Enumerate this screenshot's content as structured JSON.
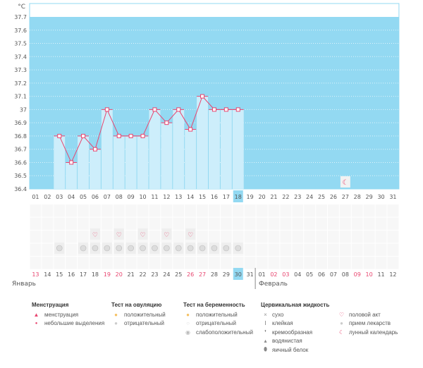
{
  "chart_data": {
    "type": "bar",
    "ylabel": "°C",
    "ylim": [
      36.4,
      37.8
    ],
    "yticks": [
      "37.7",
      "37.6",
      "37.5",
      "37.4",
      "37.3",
      "37.2",
      "37.1",
      "37",
      "36.9",
      "36.8",
      "36.7",
      "36.6",
      "36.5",
      "36.4"
    ],
    "cycle_days": [
      "01",
      "02",
      "03",
      "04",
      "05",
      "06",
      "07",
      "08",
      "09",
      "10",
      "11",
      "12",
      "13",
      "14",
      "15",
      "16",
      "17",
      "18",
      "19",
      "20",
      "21",
      "22",
      "23",
      "24",
      "25",
      "26",
      "27",
      "28",
      "29",
      "30",
      "31"
    ],
    "current_day": "18",
    "temperatures": [
      null,
      null,
      36.8,
      36.6,
      36.8,
      36.7,
      37.0,
      36.8,
      36.8,
      36.8,
      37.0,
      36.9,
      37.0,
      36.85,
      37.1,
      37.0,
      37.0,
      37.0
    ],
    "moon_day": "27",
    "intercourse_days": [
      "18",
      "20",
      "22",
      "24",
      "26"
    ],
    "medication_days": [
      "15",
      "17",
      "18",
      "19",
      "20",
      "21",
      "22",
      "23",
      "24",
      "25",
      "26",
      "27",
      "28",
      "29",
      "30"
    ],
    "dates": [
      "13",
      "14",
      "15",
      "16",
      "17",
      "18",
      "19",
      "20",
      "21",
      "22",
      "23",
      "24",
      "25",
      "26",
      "27",
      "28",
      "29",
      "30",
      "31",
      "01",
      "02",
      "03",
      "04",
      "05",
      "06",
      "07",
      "08",
      "09",
      "10",
      "11",
      "12"
    ],
    "weekend_dates_idx": [
      0,
      6,
      7,
      13,
      14,
      20,
      21,
      27,
      28
    ],
    "today_idx": 17,
    "months": [
      "Январь",
      "Февраль"
    ],
    "colors": {
      "bg": "#93d9f2",
      "bar": "#cdeefb",
      "line": "#e8456f",
      "today": "#93d9f2",
      "weekend": "#e8456f"
    }
  },
  "legend": {
    "menstruation": {
      "title": "Менструация",
      "items": [
        "менструация",
        "небольшие выделения"
      ]
    },
    "ovulation": {
      "title": "Тест на овуляцию",
      "items": [
        "положительный",
        "отрицательный"
      ]
    },
    "pregnancy": {
      "title": "Тест на беременность",
      "items": [
        "положительный",
        "отрицательный",
        "слабоположительный"
      ]
    },
    "cervical": {
      "title": "Цервикальная жидкость",
      "items": [
        "сухо",
        "клейкая",
        "кремообразная",
        "водянистая",
        "яичный белок"
      ]
    },
    "other": {
      "items": [
        "половой акт",
        "прием лекарств",
        "лунный календарь"
      ]
    }
  }
}
